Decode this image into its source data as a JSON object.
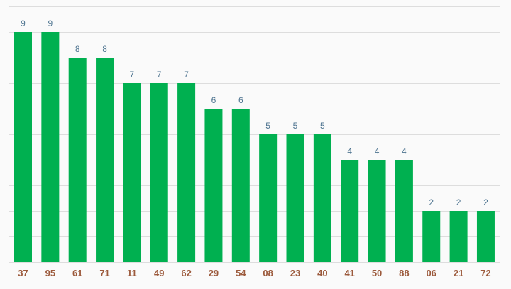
{
  "chart_data": {
    "type": "bar",
    "title": "",
    "xlabel": "",
    "ylabel": "",
    "categories": [
      "37",
      "95",
      "61",
      "71",
      "11",
      "49",
      "62",
      "29",
      "54",
      "08",
      "23",
      "40",
      "41",
      "50",
      "88",
      "06",
      "21",
      "72"
    ],
    "values": [
      9,
      9,
      8,
      8,
      7,
      7,
      7,
      6,
      6,
      5,
      5,
      5,
      4,
      4,
      4,
      2,
      2,
      2
    ],
    "ylim": [
      0,
      10
    ],
    "grid": true,
    "data_labels": true,
    "colors": {
      "bar": "#00b050",
      "value_label": "#4e7490",
      "tick_label": "#9c5a3c",
      "grid": "#dddddd",
      "background": "#fafafa"
    }
  }
}
